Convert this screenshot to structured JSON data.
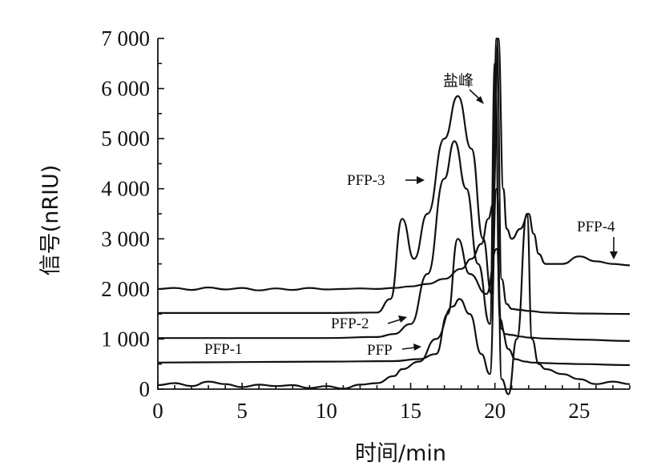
{
  "chart_data": {
    "type": "line",
    "title": "",
    "xlabel": "时间/min",
    "ylabel": "信号(nRIU)",
    "xlim": [
      0,
      28
    ],
    "ylim": [
      0,
      7000
    ],
    "x_ticks": [
      0,
      5,
      10,
      15,
      20,
      25
    ],
    "y_ticks": [
      0,
      1000,
      2000,
      3000,
      4000,
      5000,
      6000,
      7000
    ],
    "y_tick_labels": [
      "0",
      "1 000",
      "2 000",
      "3 000",
      "4 000",
      "5 000",
      "6 000",
      "7 000"
    ],
    "grid": false,
    "legend": "none",
    "series": [
      {
        "name": "PFP-4",
        "x": [
          0,
          1,
          2,
          3,
          4,
          5,
          6,
          7,
          8,
          9,
          10,
          11,
          12,
          13,
          14,
          15,
          16,
          17,
          18,
          18.6,
          19.2,
          19.6,
          19.9,
          20.2,
          20.5,
          20.7,
          21.0,
          21.5,
          22.0,
          22.3,
          22.6,
          23,
          24,
          25,
          26,
          27,
          28
        ],
        "y": [
          2000,
          2020,
          1980,
          2030,
          1990,
          2020,
          1970,
          2010,
          1980,
          2020,
          1990,
          2000,
          2010,
          2000,
          2020,
          2050,
          2100,
          2200,
          2400,
          2600,
          2900,
          3400,
          3700,
          7000,
          4000,
          3200,
          3000,
          3200,
          3500,
          3100,
          2700,
          2500,
          2500,
          2650,
          2550,
          2500,
          2470
        ]
      },
      {
        "name": "PFP-3",
        "x": [
          0,
          5,
          10,
          13,
          13.8,
          14.5,
          15.2,
          16,
          17,
          17.8,
          18.6,
          19.3,
          19.8,
          20.1,
          20.4,
          20.7,
          21.0,
          21.5,
          22,
          23,
          24,
          25,
          28
        ],
        "y": [
          1520,
          1520,
          1520,
          1530,
          1800,
          3400,
          2600,
          3500,
          5000,
          5850,
          4800,
          3000,
          1900,
          7000,
          2200,
          1700,
          1600,
          1580,
          1560,
          1530,
          1520,
          1510,
          1500
        ]
      },
      {
        "name": "PFP-2",
        "x": [
          0,
          5,
          10,
          13,
          14,
          15,
          16,
          17,
          17.6,
          18.3,
          19,
          19.7,
          20.0,
          20.3,
          20.6,
          21.0,
          21.5,
          22,
          23,
          24,
          25,
          28
        ],
        "y": [
          1020,
          1020,
          1020,
          1040,
          1100,
          1300,
          2300,
          4200,
          4950,
          4000,
          2500,
          1300,
          6500,
          1400,
          1100,
          1080,
          1050,
          1030,
          1010,
          1000,
          990,
          960
        ]
      },
      {
        "name": "PFP-1",
        "x": [
          0,
          5,
          10,
          14,
          15.5,
          16.5,
          17.2,
          17.8,
          18.5,
          19.5,
          20.1,
          20.4,
          20.8,
          21.2,
          21.8,
          22.2,
          23,
          24,
          25,
          28
        ],
        "y": [
          530,
          540,
          550,
          560,
          600,
          700,
          1500,
          3000,
          2300,
          1900,
          2800,
          1200,
          800,
          600,
          550,
          530,
          520,
          510,
          500,
          480
        ]
      },
      {
        "name": "PFP",
        "x": [
          0,
          1,
          2,
          3,
          4,
          5,
          6,
          7,
          8,
          9,
          10,
          11,
          12,
          13,
          14,
          14.5,
          15.5,
          16.5,
          17.5,
          17.9,
          18.5,
          19.2,
          19.7,
          20.1,
          20.4,
          20.8,
          21.3,
          21.9,
          22.2,
          22.6,
          23,
          24,
          25,
          26,
          27,
          28
        ],
        "y": [
          80,
          120,
          60,
          150,
          100,
          40,
          90,
          60,
          80,
          20,
          60,
          10,
          90,
          120,
          260,
          400,
          550,
          1000,
          1650,
          1800,
          1500,
          700,
          300,
          4000,
          200,
          -100,
          1000,
          3500,
          1000,
          500,
          400,
          300,
          200,
          100,
          150,
          100
        ]
      }
    ],
    "annotations": [
      {
        "text": "盐峰"
      },
      {
        "text": "PFP-3"
      },
      {
        "text": "PFP-4"
      },
      {
        "text": "PFP-2"
      },
      {
        "text": "PFP-1"
      },
      {
        "text": "PFP"
      }
    ]
  }
}
